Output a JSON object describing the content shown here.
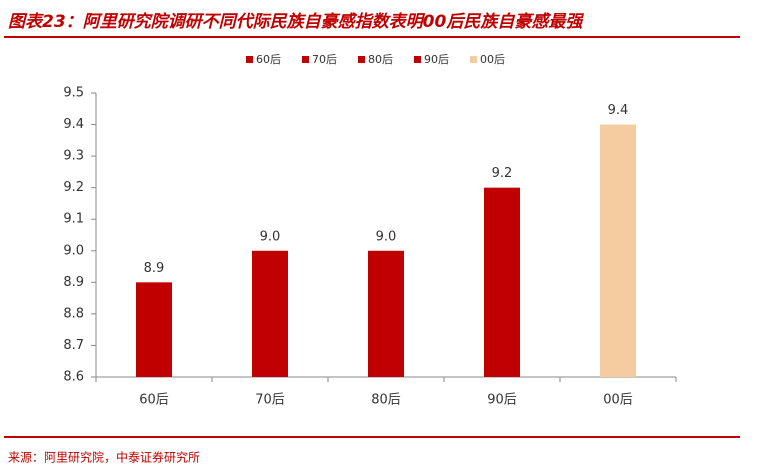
{
  "chart_data": {
    "type": "bar",
    "title": "图表23：阿里研究院调研不同代际民族自豪感指数表明00后民族自豪感最强",
    "source": "来源：阿里研究院，中泰证券研究所",
    "categories": [
      "60后",
      "70后",
      "80后",
      "90后",
      "00后"
    ],
    "values": [
      8.9,
      9,
      9,
      9.2,
      9.4
    ],
    "value_labels": [
      "8.9",
      "9.0",
      "9.0",
      "9.2",
      "9.4"
    ],
    "colors": [
      "#c00000",
      "#c00000",
      "#c00000",
      "#c00000",
      "#f5cba0"
    ],
    "ylim": [
      8.6,
      9.5
    ],
    "yticks": [
      8.6,
      8.7,
      8.8,
      8.9,
      {
        "value": 9,
        "label": "9.0"
      },
      9.1,
      9.2,
      9.3,
      9.4,
      9.5
    ],
    "legend": "top"
  }
}
